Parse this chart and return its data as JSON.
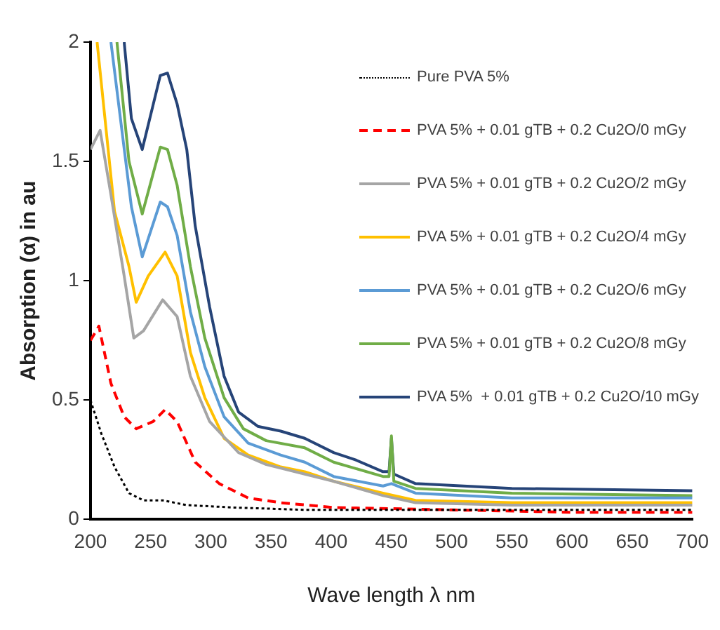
{
  "chart_data": {
    "type": "line",
    "xlabel": "Wave length λ nm",
    "ylabel": "Absorption (α) in au",
    "xlim": [
      200,
      700
    ],
    "ylim": [
      0,
      2
    ],
    "xticks": [
      200,
      250,
      300,
      350,
      400,
      450,
      500,
      550,
      600,
      650,
      700
    ],
    "yticks": [
      0,
      0.5,
      1,
      1.5,
      2
    ],
    "grid": false,
    "legend": "top right",
    "marker": "none",
    "series": [
      {
        "name": "Pure PVA 5%",
        "color": "#000000",
        "line_style": "dotted",
        "x": [
          200,
          209,
          220,
          232,
          244,
          260,
          280,
          319,
          378,
          400,
          500,
          600,
          700
        ],
        "values": [
          0.5,
          0.36,
          0.22,
          0.11,
          0.08,
          0.08,
          0.06,
          0.05,
          0.04,
          0.04,
          0.04,
          0.04,
          0.04
        ]
      },
      {
        "name": "PVA 5% + 0.01 gTB + 0.2 Cu2O/0 mGy",
        "color": "#ff0000",
        "line_style": "dashed",
        "x": [
          200,
          207,
          217,
          228,
          238,
          252,
          262,
          272,
          287,
          307,
          331,
          358,
          402,
          500,
          600,
          700
        ],
        "values": [
          0.75,
          0.81,
          0.57,
          0.43,
          0.38,
          0.41,
          0.46,
          0.41,
          0.24,
          0.15,
          0.09,
          0.07,
          0.05,
          0.04,
          0.03,
          0.03
        ]
      },
      {
        "name": "PVA 5% + 0.01 gTB + 0.2 Cu2O/2 mGy",
        "color": "#a5a5a5",
        "line_style": "solid",
        "x": [
          200,
          208,
          217,
          228,
          236,
          244,
          260,
          272,
          283,
          299,
          323,
          346,
          378,
          402,
          443,
          470,
          550,
          700
        ],
        "values": [
          1.55,
          1.63,
          1.36,
          1.02,
          0.76,
          0.79,
          0.92,
          0.85,
          0.6,
          0.41,
          0.28,
          0.23,
          0.19,
          0.16,
          0.1,
          0.07,
          0.06,
          0.06
        ]
      },
      {
        "name": "PVA 5% + 0.01 gTB + 0.2 Cu2O/4 mGy",
        "color": "#ffc000",
        "line_style": "solid",
        "x": [
          205.5,
          220,
          232,
          238,
          248,
          262,
          272,
          283,
          295,
          311,
          331,
          358,
          378,
          402,
          443,
          470,
          550,
          700
        ],
        "values": [
          2,
          1.29,
          1.06,
          0.91,
          1.02,
          1.12,
          1.02,
          0.7,
          0.51,
          0.34,
          0.27,
          0.22,
          0.2,
          0.16,
          0.11,
          0.08,
          0.07,
          0.07
        ]
      },
      {
        "name": "PVA 5% + 0.01 gTB + 0.2 Cu2O/6 mGy",
        "color": "#5b9bd5",
        "line_style": "solid",
        "x": [
          217,
          234,
          243,
          258,
          264,
          272,
          283,
          295,
          311,
          331,
          358,
          378,
          402,
          443,
          450,
          470,
          550,
          700
        ],
        "values": [
          2,
          1.31,
          1.1,
          1.33,
          1.31,
          1.19,
          0.87,
          0.64,
          0.43,
          0.32,
          0.27,
          0.24,
          0.18,
          0.14,
          0.15,
          0.11,
          0.09,
          0.09
        ]
      },
      {
        "name": "PVA 5% + 0.01 gTB + 0.2 Cu2O/8 mGy",
        "color": "#70ad47",
        "line_style": "solid",
        "x": [
          222,
          232,
          243,
          258,
          264,
          272,
          283,
          295,
          311,
          327,
          346,
          378,
          402,
          443,
          448,
          450,
          452,
          470,
          550,
          700
        ],
        "values": [
          2,
          1.5,
          1.28,
          1.56,
          1.55,
          1.4,
          1.06,
          0.76,
          0.51,
          0.38,
          0.33,
          0.3,
          0.24,
          0.18,
          0.18,
          0.35,
          0.16,
          0.13,
          0.11,
          0.1
        ]
      },
      {
        "name": "PVA 5%  + 0.01 gTB + 0.2 Cu2O/10 mGy",
        "color": "#264478",
        "line_style": "solid",
        "x": [
          228,
          234,
          243,
          258,
          264,
          272,
          280,
          287,
          299,
          311,
          323,
          339,
          358,
          378,
          402,
          420,
          443,
          448,
          450,
          452,
          470,
          550,
          700
        ],
        "values": [
          2,
          1.68,
          1.55,
          1.86,
          1.87,
          1.74,
          1.55,
          1.23,
          0.89,
          0.6,
          0.45,
          0.39,
          0.37,
          0.34,
          0.28,
          0.25,
          0.2,
          0.2,
          0.34,
          0.19,
          0.15,
          0.13,
          0.12
        ]
      }
    ]
  }
}
